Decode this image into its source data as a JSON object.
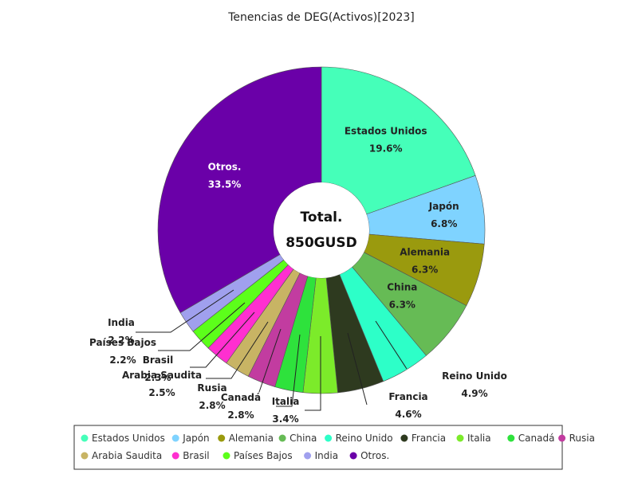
{
  "chart_data": {
    "type": "pie",
    "variant": "donut",
    "title": "Tenencias de DEG(Activos)[2023]",
    "center_label": {
      "line1": "Total.",
      "line2": "850GUSD"
    },
    "categories": [
      "Estados Unidos",
      "Japón",
      "Alemania",
      "China",
      "Reino Unido",
      "Francia",
      "Italia",
      "Canadá",
      "Rusia",
      "Arabia Saudita",
      "Brasil",
      "Países Bajos",
      "India",
      "Otros."
    ],
    "values": [
      19.6,
      6.8,
      6.3,
      6.3,
      4.9,
      4.6,
      3.4,
      2.8,
      2.8,
      2.5,
      2.3,
      2.2,
      2.2,
      33.5
    ],
    "value_labels": [
      "19.6%",
      "6.8%",
      "6.3%",
      "6.3%",
      "4.9%",
      "4.6%",
      "3.4%",
      "2.8%",
      "2.8%",
      "2.5%",
      "2.3%",
      "2.2%",
      "2.2%",
      "33.5%"
    ],
    "colors": [
      "#45ffb9",
      "#7fd3ff",
      "#9a9a0e",
      "#66bb55",
      "#2dffc8",
      "#2e3a1f",
      "#7ceb2a",
      "#2ee23c",
      "#c23ca0",
      "#c8b464",
      "#ff2fd0",
      "#5cff1a",
      "#a0a0ee",
      "#6a00a8"
    ],
    "label_text_colors": [
      "#222222",
      "#222222",
      "#222222",
      "#222222",
      "#222222",
      "#222222",
      "#222222",
      "#222222",
      "#222222",
      "#222222",
      "#222222",
      "#222222",
      "#222222",
      "#ffffff"
    ],
    "legend": {
      "placement": "bottom",
      "order": [
        "Estados Unidos",
        "Japón",
        "Alemania",
        "China",
        "Reino Unido",
        "Francia",
        "Italia",
        "Canadá",
        "Rusia",
        "Arabia Saudita",
        "Brasil",
        "Países Bajos",
        "India",
        "Otros."
      ]
    }
  }
}
